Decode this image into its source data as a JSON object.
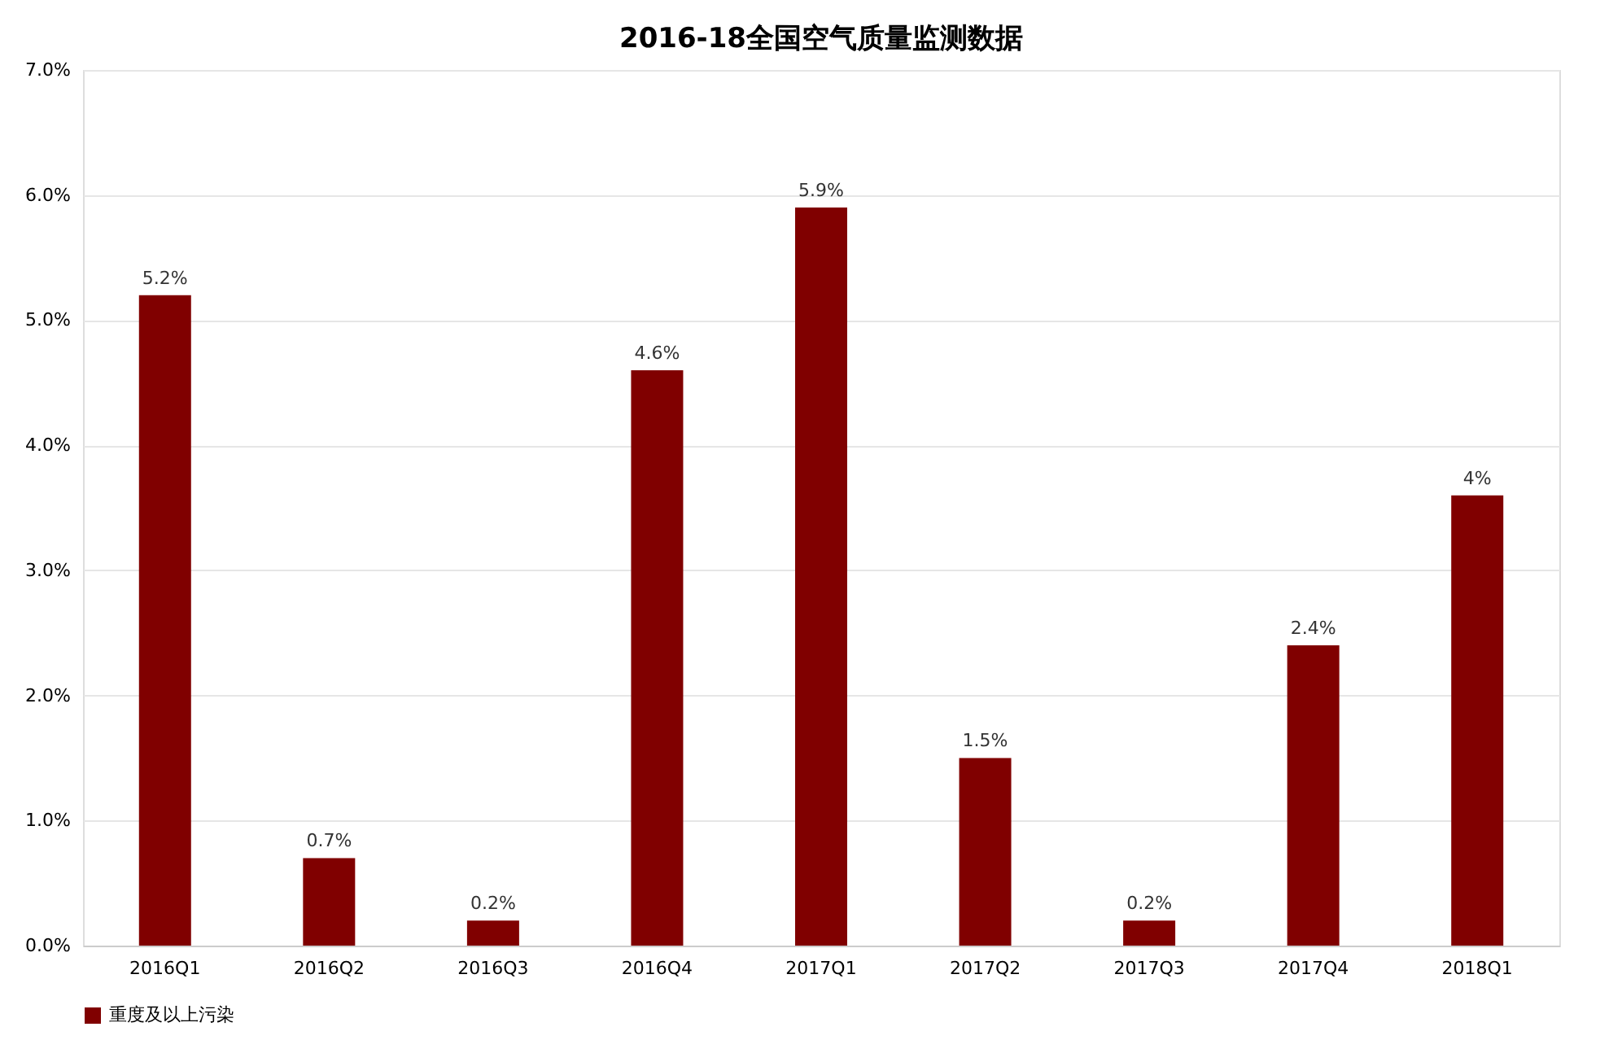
{
  "chart_data": {
    "type": "bar",
    "title": "2016-18全国空气质量监测数据",
    "categories": [
      "2016Q1",
      "2016Q2",
      "2016Q3",
      "2016Q4",
      "2017Q1",
      "2017Q2",
      "2017Q3",
      "2017Q4",
      "2018Q1"
    ],
    "series": [
      {
        "name": "重度及以上污染",
        "color": "#800000",
        "values": [
          5.2,
          0.7,
          0.2,
          4.6,
          5.9,
          1.5,
          0.2,
          2.4,
          3.6
        ],
        "value_labels": [
          "5.2%",
          "0.7%",
          "0.2%",
          "4.6%",
          "5.9%",
          "1.5%",
          "0.2%",
          "2.4%",
          "4%"
        ]
      }
    ],
    "ylim": [
      0,
      7
    ],
    "yticks": [
      {
        "value": 0,
        "label": "0.0%"
      },
      {
        "value": 1,
        "label": "1.0%"
      },
      {
        "value": 2,
        "label": "2.0%"
      },
      {
        "value": 3,
        "label": "3.0%"
      },
      {
        "value": 4,
        "label": "4.0%"
      },
      {
        "value": 5,
        "label": "5.0%"
      },
      {
        "value": 6,
        "label": "6.0%"
      },
      {
        "value": 7,
        "label": "7.0%"
      }
    ],
    "grid": "y",
    "legend": "bottom"
  }
}
